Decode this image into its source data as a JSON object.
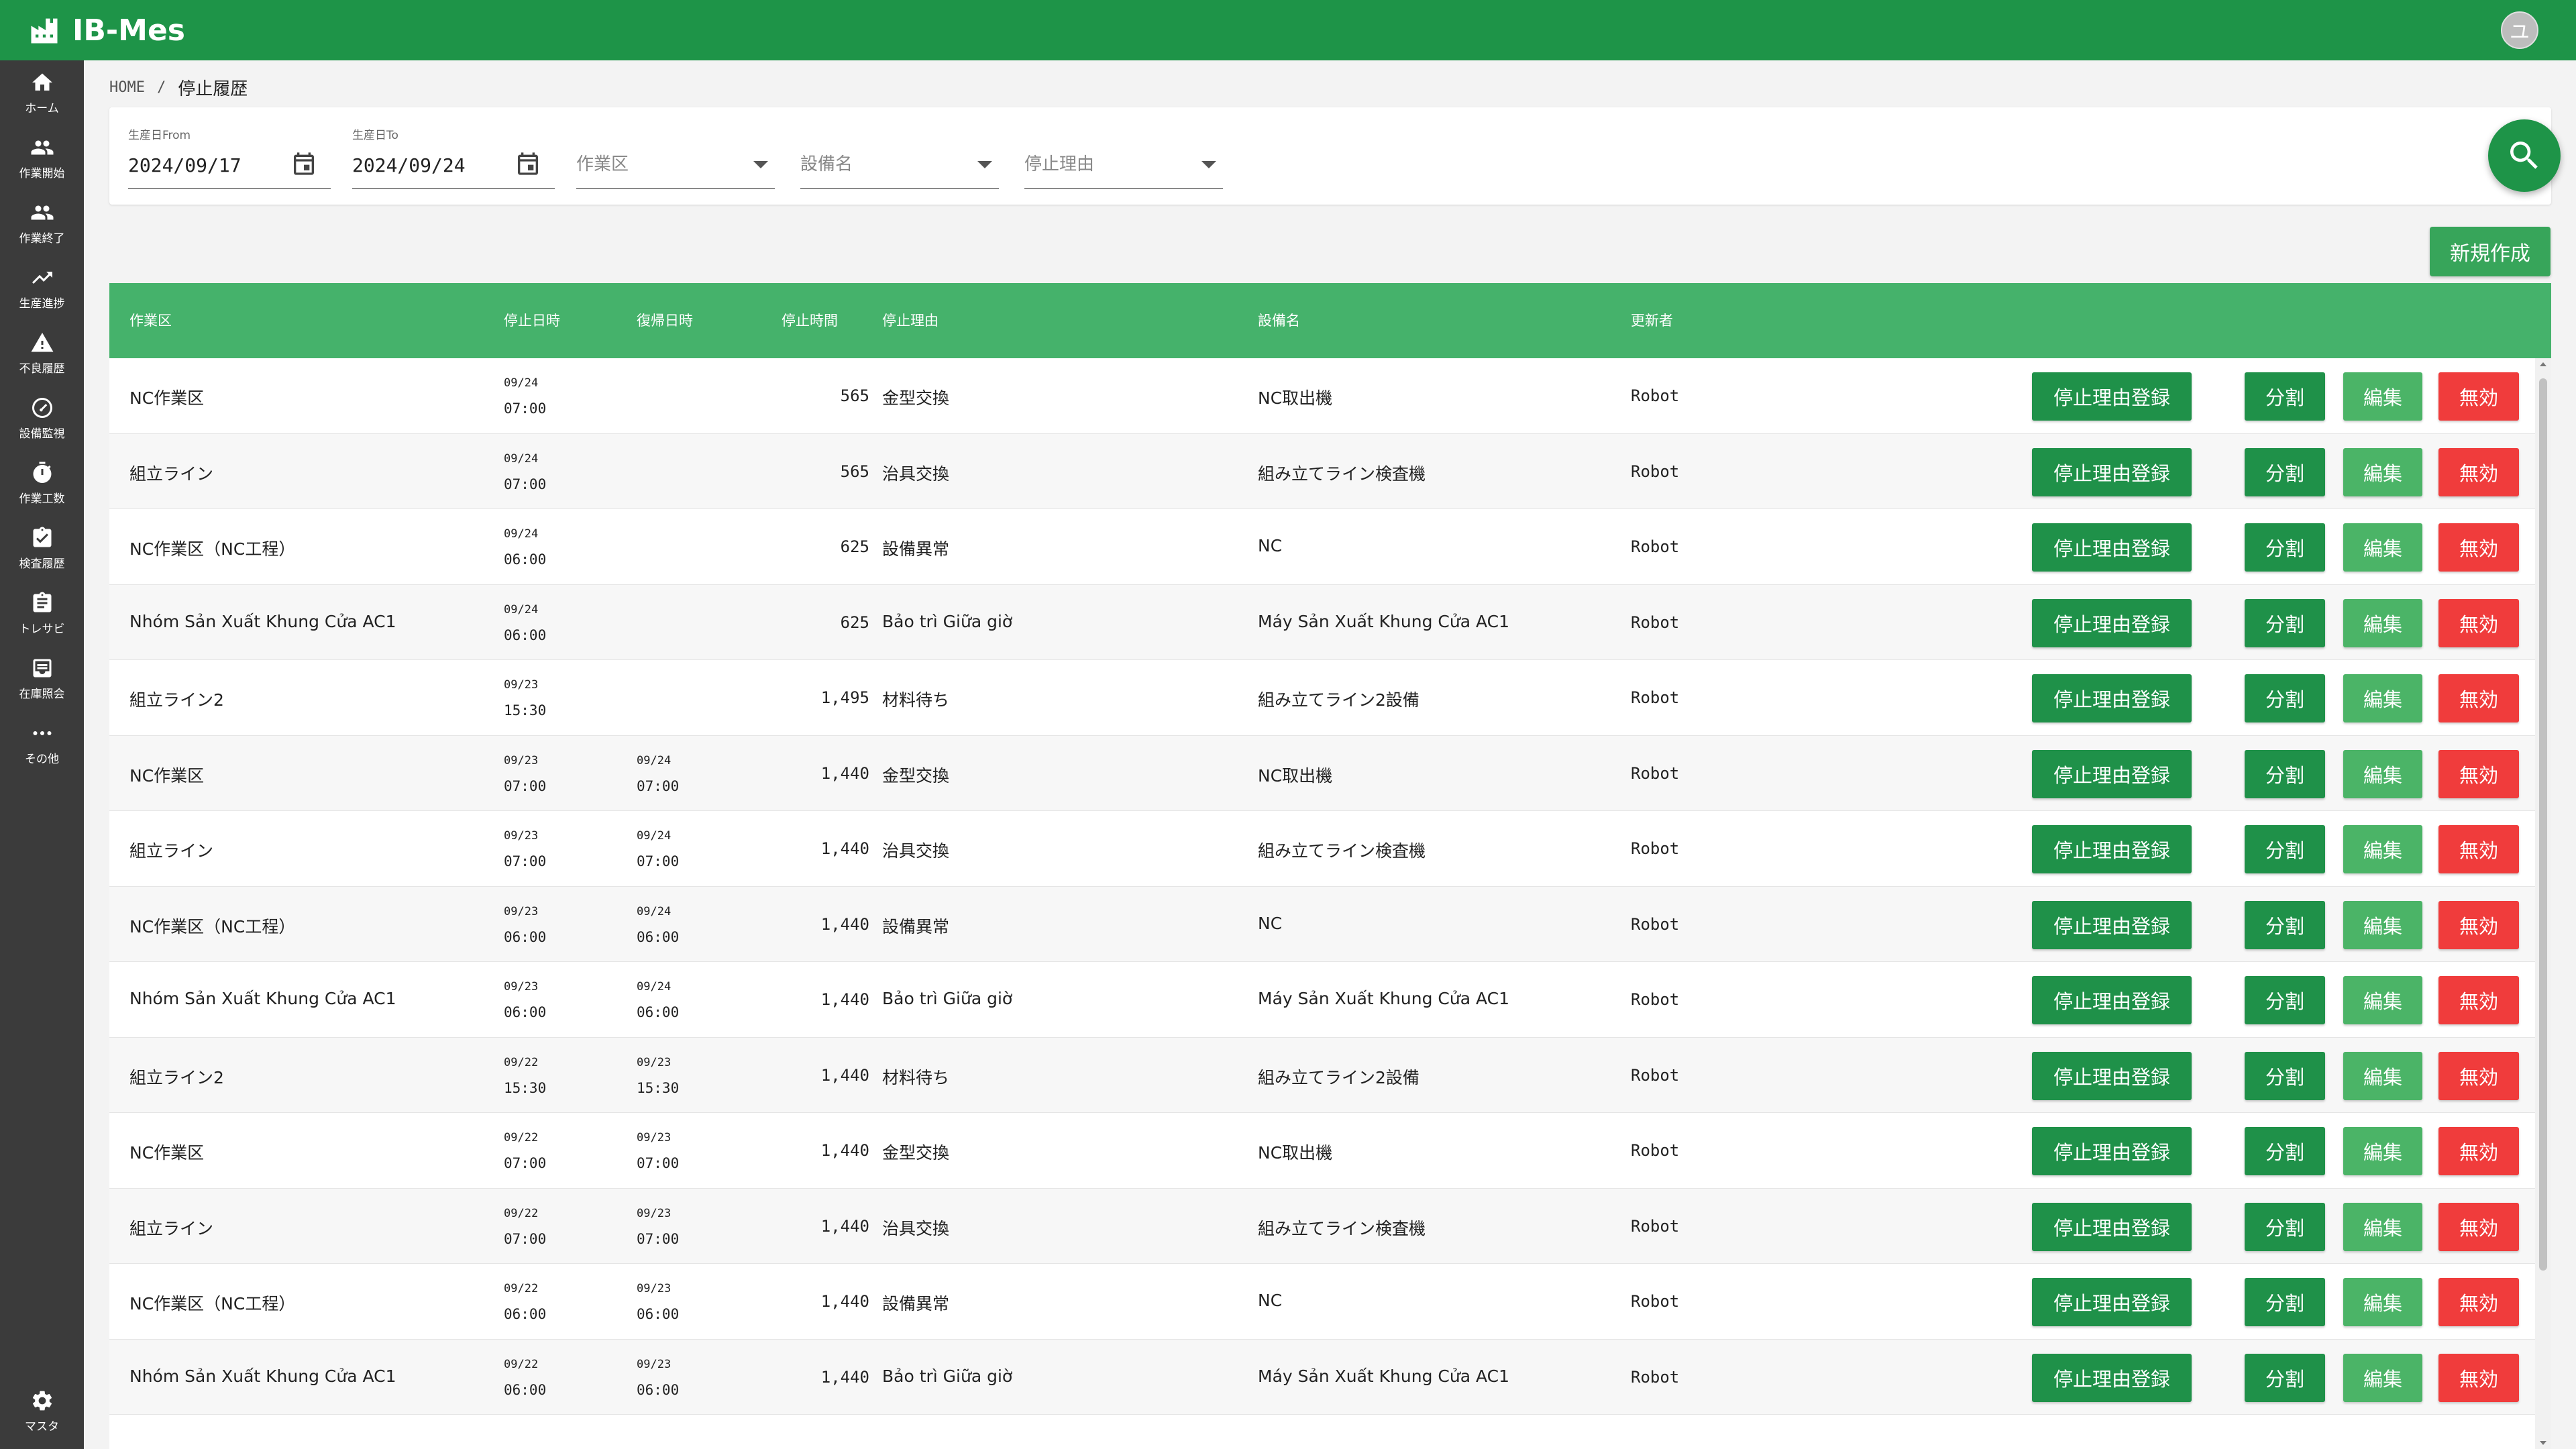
{
  "app": {
    "title": "IB-Mes",
    "avatar_initial": "ユ",
    "brand_color": "#1e9448"
  },
  "sidebar": {
    "items": [
      {
        "label": "ホーム",
        "icon": "home-icon"
      },
      {
        "label": "作業開始",
        "icon": "group-icon"
      },
      {
        "label": "作業終了",
        "icon": "group-icon"
      },
      {
        "label": "生産進捗",
        "icon": "trending-up-icon"
      },
      {
        "label": "不良履歴",
        "icon": "warning-icon"
      },
      {
        "label": "設備監視",
        "icon": "gauge-icon"
      },
      {
        "label": "作業工数",
        "icon": "stopwatch-icon"
      },
      {
        "label": "検査履歴",
        "icon": "clipboard-check-icon"
      },
      {
        "label": "トレサビ",
        "icon": "clipboard-icon"
      },
      {
        "label": "在庫照会",
        "icon": "inbox-icon"
      },
      {
        "label": "その他",
        "icon": "more-horiz-icon"
      }
    ],
    "bottom": {
      "label": "マスタ",
      "icon": "gear-icon"
    }
  },
  "breadcrumb": {
    "home": "HOME",
    "separator": "/",
    "current": "停止履歴"
  },
  "filters": {
    "date_from": {
      "label": "生産日From",
      "value": "2024/09/17"
    },
    "date_to": {
      "label": "生産日To",
      "value": "2024/09/24"
    },
    "work_area": {
      "placeholder": "作業区"
    },
    "equipment": {
      "placeholder": "設備名"
    },
    "reason": {
      "placeholder": "停止理由"
    }
  },
  "new_button": "新規作成",
  "table": {
    "headers": {
      "area": "作業区",
      "stop_time": "停止日時",
      "recover_time": "復帰日時",
      "duration": "停止時間",
      "reason": "停止理由",
      "equipment": "設備名",
      "updater": "更新者"
    },
    "actions": {
      "register": "停止理由登録",
      "split": "分割",
      "edit": "編集",
      "void": "無効"
    },
    "rows": [
      {
        "area": "NC作業区",
        "stop_date": "09/24",
        "stop_time": "07:00",
        "rec_date": "",
        "rec_time": "",
        "duration": "565",
        "reason": "金型交換",
        "equipment": "NC取出機",
        "updater": "Robot"
      },
      {
        "area": "組立ライン",
        "stop_date": "09/24",
        "stop_time": "07:00",
        "rec_date": "",
        "rec_time": "",
        "duration": "565",
        "reason": "治具交換",
        "equipment": "組み立てライン検査機",
        "updater": "Robot"
      },
      {
        "area": "NC作業区（NC工程）",
        "stop_date": "09/24",
        "stop_time": "06:00",
        "rec_date": "",
        "rec_time": "",
        "duration": "625",
        "reason": "設備異常",
        "equipment": "NC",
        "updater": "Robot"
      },
      {
        "area": "Nhóm Sản Xuất Khung Cửa AC1",
        "stop_date": "09/24",
        "stop_time": "06:00",
        "rec_date": "",
        "rec_time": "",
        "duration": "625",
        "reason": "Bảo trì Giữa giờ",
        "equipment": "Máy Sản Xuất Khung Cửa AC1",
        "updater": "Robot"
      },
      {
        "area": "組立ライン2",
        "stop_date": "09/23",
        "stop_time": "15:30",
        "rec_date": "",
        "rec_time": "",
        "duration": "1,495",
        "reason": "材料待ち",
        "equipment": "組み立てライン2設備",
        "updater": "Robot"
      },
      {
        "area": "NC作業区",
        "stop_date": "09/23",
        "stop_time": "07:00",
        "rec_date": "09/24",
        "rec_time": "07:00",
        "duration": "1,440",
        "reason": "金型交換",
        "equipment": "NC取出機",
        "updater": "Robot"
      },
      {
        "area": "組立ライン",
        "stop_date": "09/23",
        "stop_time": "07:00",
        "rec_date": "09/24",
        "rec_time": "07:00",
        "duration": "1,440",
        "reason": "治具交換",
        "equipment": "組み立てライン検査機",
        "updater": "Robot"
      },
      {
        "area": "NC作業区（NC工程）",
        "stop_date": "09/23",
        "stop_time": "06:00",
        "rec_date": "09/24",
        "rec_time": "06:00",
        "duration": "1,440",
        "reason": "設備異常",
        "equipment": "NC",
        "updater": "Robot"
      },
      {
        "area": "Nhóm Sản Xuất Khung Cửa AC1",
        "stop_date": "09/23",
        "stop_time": "06:00",
        "rec_date": "09/24",
        "rec_time": "06:00",
        "duration": "1,440",
        "reason": "Bảo trì Giữa giờ",
        "equipment": "Máy Sản Xuất Khung Cửa AC1",
        "updater": "Robot"
      },
      {
        "area": "組立ライン2",
        "stop_date": "09/22",
        "stop_time": "15:30",
        "rec_date": "09/23",
        "rec_time": "15:30",
        "duration": "1,440",
        "reason": "材料待ち",
        "equipment": "組み立てライン2設備",
        "updater": "Robot"
      },
      {
        "area": "NC作業区",
        "stop_date": "09/22",
        "stop_time": "07:00",
        "rec_date": "09/23",
        "rec_time": "07:00",
        "duration": "1,440",
        "reason": "金型交換",
        "equipment": "NC取出機",
        "updater": "Robot"
      },
      {
        "area": "組立ライン",
        "stop_date": "09/22",
        "stop_time": "07:00",
        "rec_date": "09/23",
        "rec_time": "07:00",
        "duration": "1,440",
        "reason": "治具交換",
        "equipment": "組み立てライン検査機",
        "updater": "Robot"
      },
      {
        "area": "NC作業区（NC工程）",
        "stop_date": "09/22",
        "stop_time": "06:00",
        "rec_date": "09/23",
        "rec_time": "06:00",
        "duration": "1,440",
        "reason": "設備異常",
        "equipment": "NC",
        "updater": "Robot"
      },
      {
        "area": "Nhóm Sản Xuất Khung Cửa AC1",
        "stop_date": "09/22",
        "stop_time": "06:00",
        "rec_date": "09/23",
        "rec_time": "06:00",
        "duration": "1,440",
        "reason": "Bảo trì Giữa giờ",
        "equipment": "Máy Sản Xuất Khung Cửa AC1",
        "updater": "Robot"
      }
    ]
  }
}
